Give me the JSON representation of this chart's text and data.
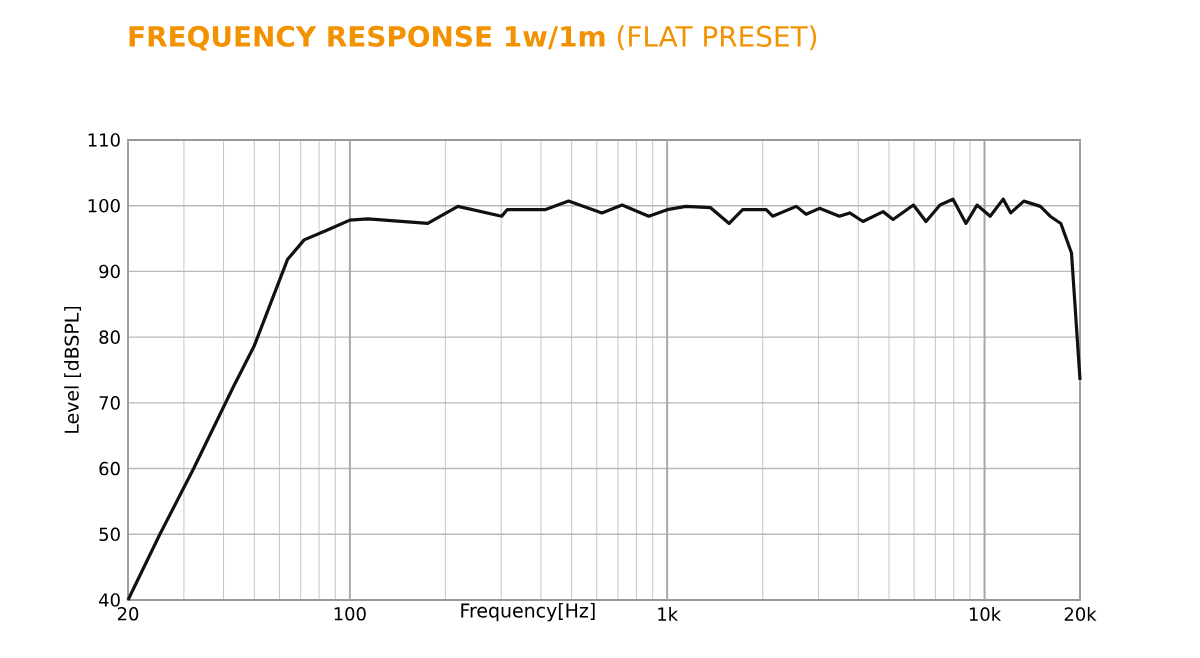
{
  "chart_data": {
    "type": "line",
    "title": "**FREQUENCY RESPONSE 1w/1m** (FLAT PRESET)",
    "xlabel": "Frequency[Hz]",
    "ylabel": "Level [dBSPL]",
    "log": "x",
    "grid": true,
    "marker": "none",
    "line_style": "solid",
    "xlim": [
      20,
      20000
    ],
    "ylim": [
      40,
      110
    ],
    "xticks": [
      20,
      100,
      {
        "value": 1000,
        "label": "1k"
      },
      {
        "value": 10000,
        "label": "10k"
      },
      {
        "value": 20000,
        "label": "20k"
      }
    ],
    "yticks": [
      40,
      50,
      60,
      70,
      80,
      90,
      100,
      110
    ],
    "x": [
      20,
      25.2,
      32.2,
      43,
      49.9,
      63.6,
      71.8,
      85,
      100,
      114,
      176,
      219,
      301,
      313,
      412,
      489,
      623,
      721,
      875,
      1000,
      1145,
      1370,
      1568,
      1729,
      2051,
      2150,
      2552,
      2740,
      3020,
      3490,
      3760,
      4140,
      4790,
      5150,
      5970,
      6540,
      7240,
      7960,
      8740,
      9470,
      10420,
      11450,
      12100,
      13300,
      15000,
      16100,
      17400,
      18800,
      20000
    ],
    "series": [
      {
        "color": "#111111",
        "values": [
          40,
          50,
          60,
          72.5,
          78.6,
          91.8,
          94.8,
          96.3,
          97.8,
          98,
          97.3,
          99.9,
          98.4,
          99.4,
          99.4,
          100.7,
          98.9,
          100.1,
          98.4,
          99.4,
          99.9,
          99.7,
          97.3,
          99.4,
          99.4,
          98.4,
          99.9,
          98.7,
          99.6,
          98.4,
          98.9,
          97.6,
          99.1,
          97.9,
          100.1,
          97.6,
          100.1,
          101,
          97.3,
          100.1,
          98.4,
          101,
          98.9,
          100.7,
          99.9,
          98.4,
          97.3,
          92.8,
          73.5
        ]
      }
    ]
  }
}
